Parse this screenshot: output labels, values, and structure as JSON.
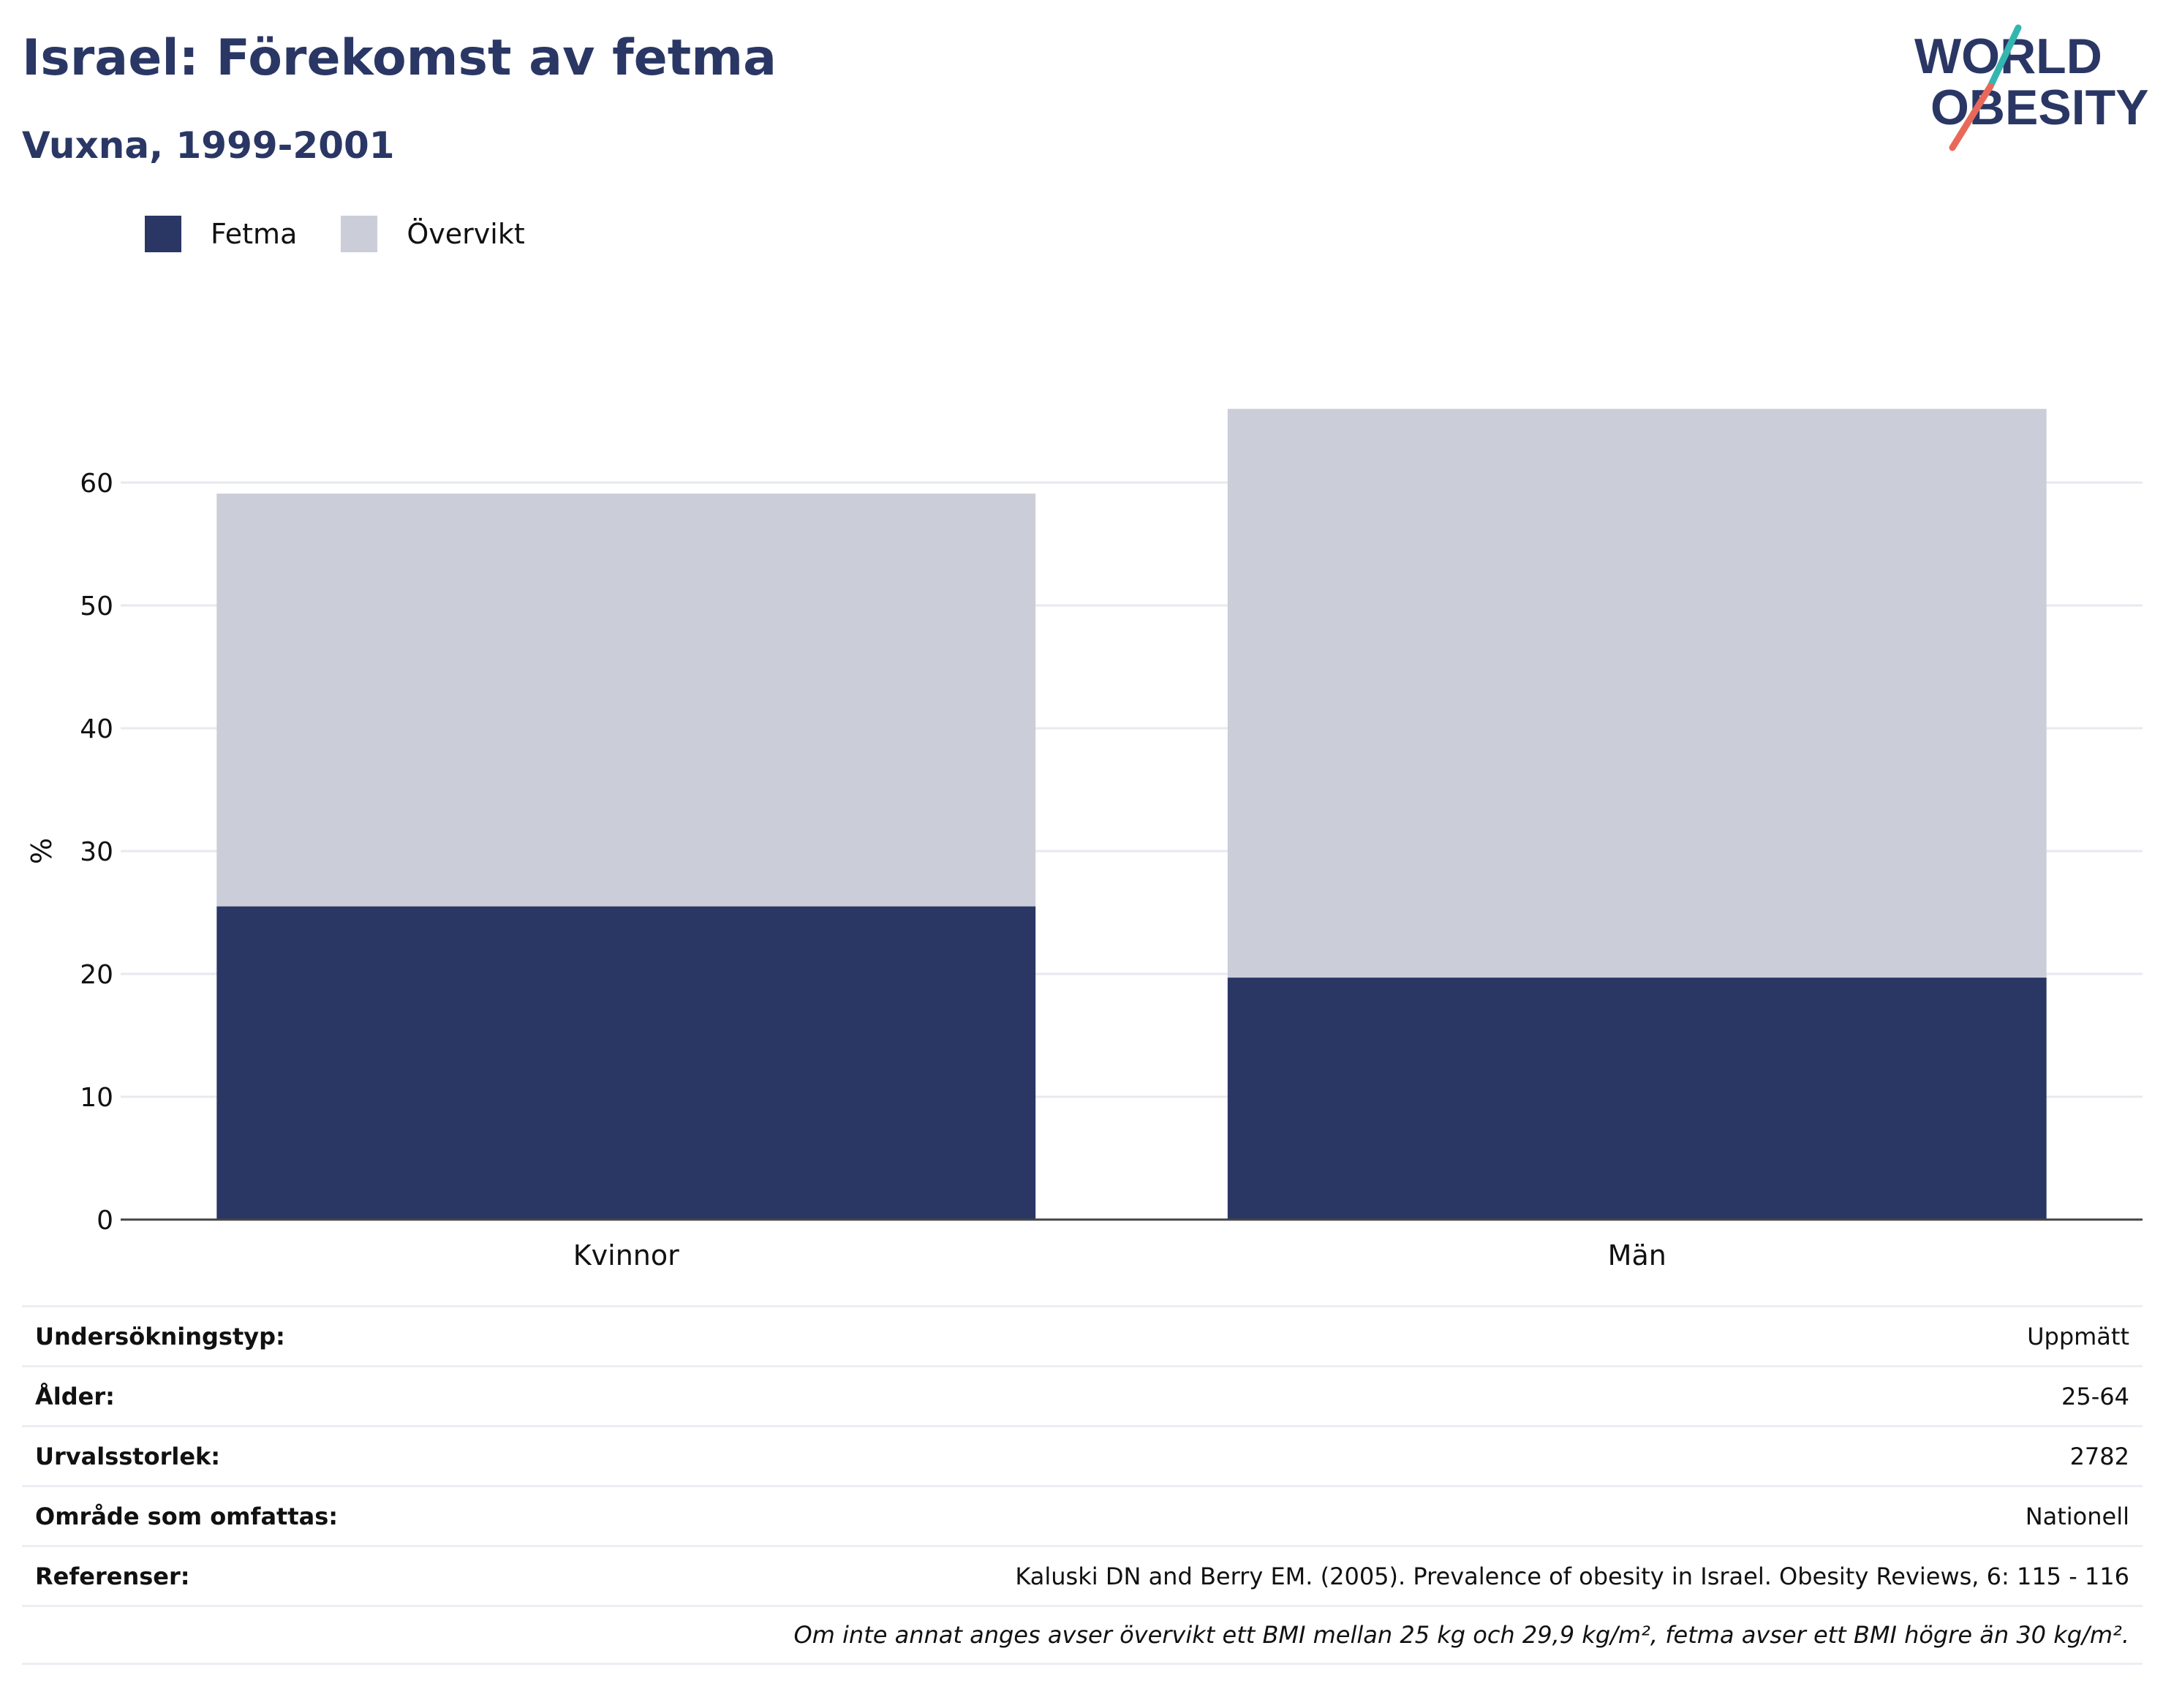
{
  "header": {
    "title": "Israel: Förekomst av fetma",
    "subtitle": "Vuxna, 1999-2001"
  },
  "logo": {
    "line1": "WORLD",
    "line2": "OBESITY"
  },
  "legend": [
    {
      "label": "Fetma",
      "color": "#2a3765"
    },
    {
      "label": "Övervikt",
      "color": "#cbcdd8"
    }
  ],
  "chart_data": {
    "type": "bar",
    "stacked": true,
    "categories": [
      "Kvinnor",
      "Män"
    ],
    "series": [
      {
        "name": "Fetma",
        "values": [
          25.5,
          19.7
        ],
        "color": "#2a3765"
      },
      {
        "name": "Övervikt",
        "values": [
          33.6,
          46.3
        ],
        "color": "#cbcdd8"
      }
    ],
    "ylabel": "%",
    "ylim": [
      0,
      70
    ],
    "yticks": [
      0,
      10,
      20,
      30,
      40,
      50,
      60
    ],
    "grid": true,
    "legend_position": "top-left"
  },
  "metadata": {
    "rows": [
      {
        "label": "Undersökningstyp:",
        "value": "Uppmätt"
      },
      {
        "label": "Ålder:",
        "value": "25-64"
      },
      {
        "label": "Urvalsstorlek:",
        "value": "2782"
      },
      {
        "label": "Område som omfattas:",
        "value": "Nationell"
      },
      {
        "label": "Referenser:",
        "value": "Kaluski DN and Berry EM. (2005). Prevalence of obesity in Israel. Obesity Reviews, 6: 115 - 116"
      }
    ],
    "note": "Om inte annat anges avser övervikt ett BMI mellan 25 kg och 29,9 kg/m², fetma avser ett BMI högre än 30 kg/m²."
  }
}
